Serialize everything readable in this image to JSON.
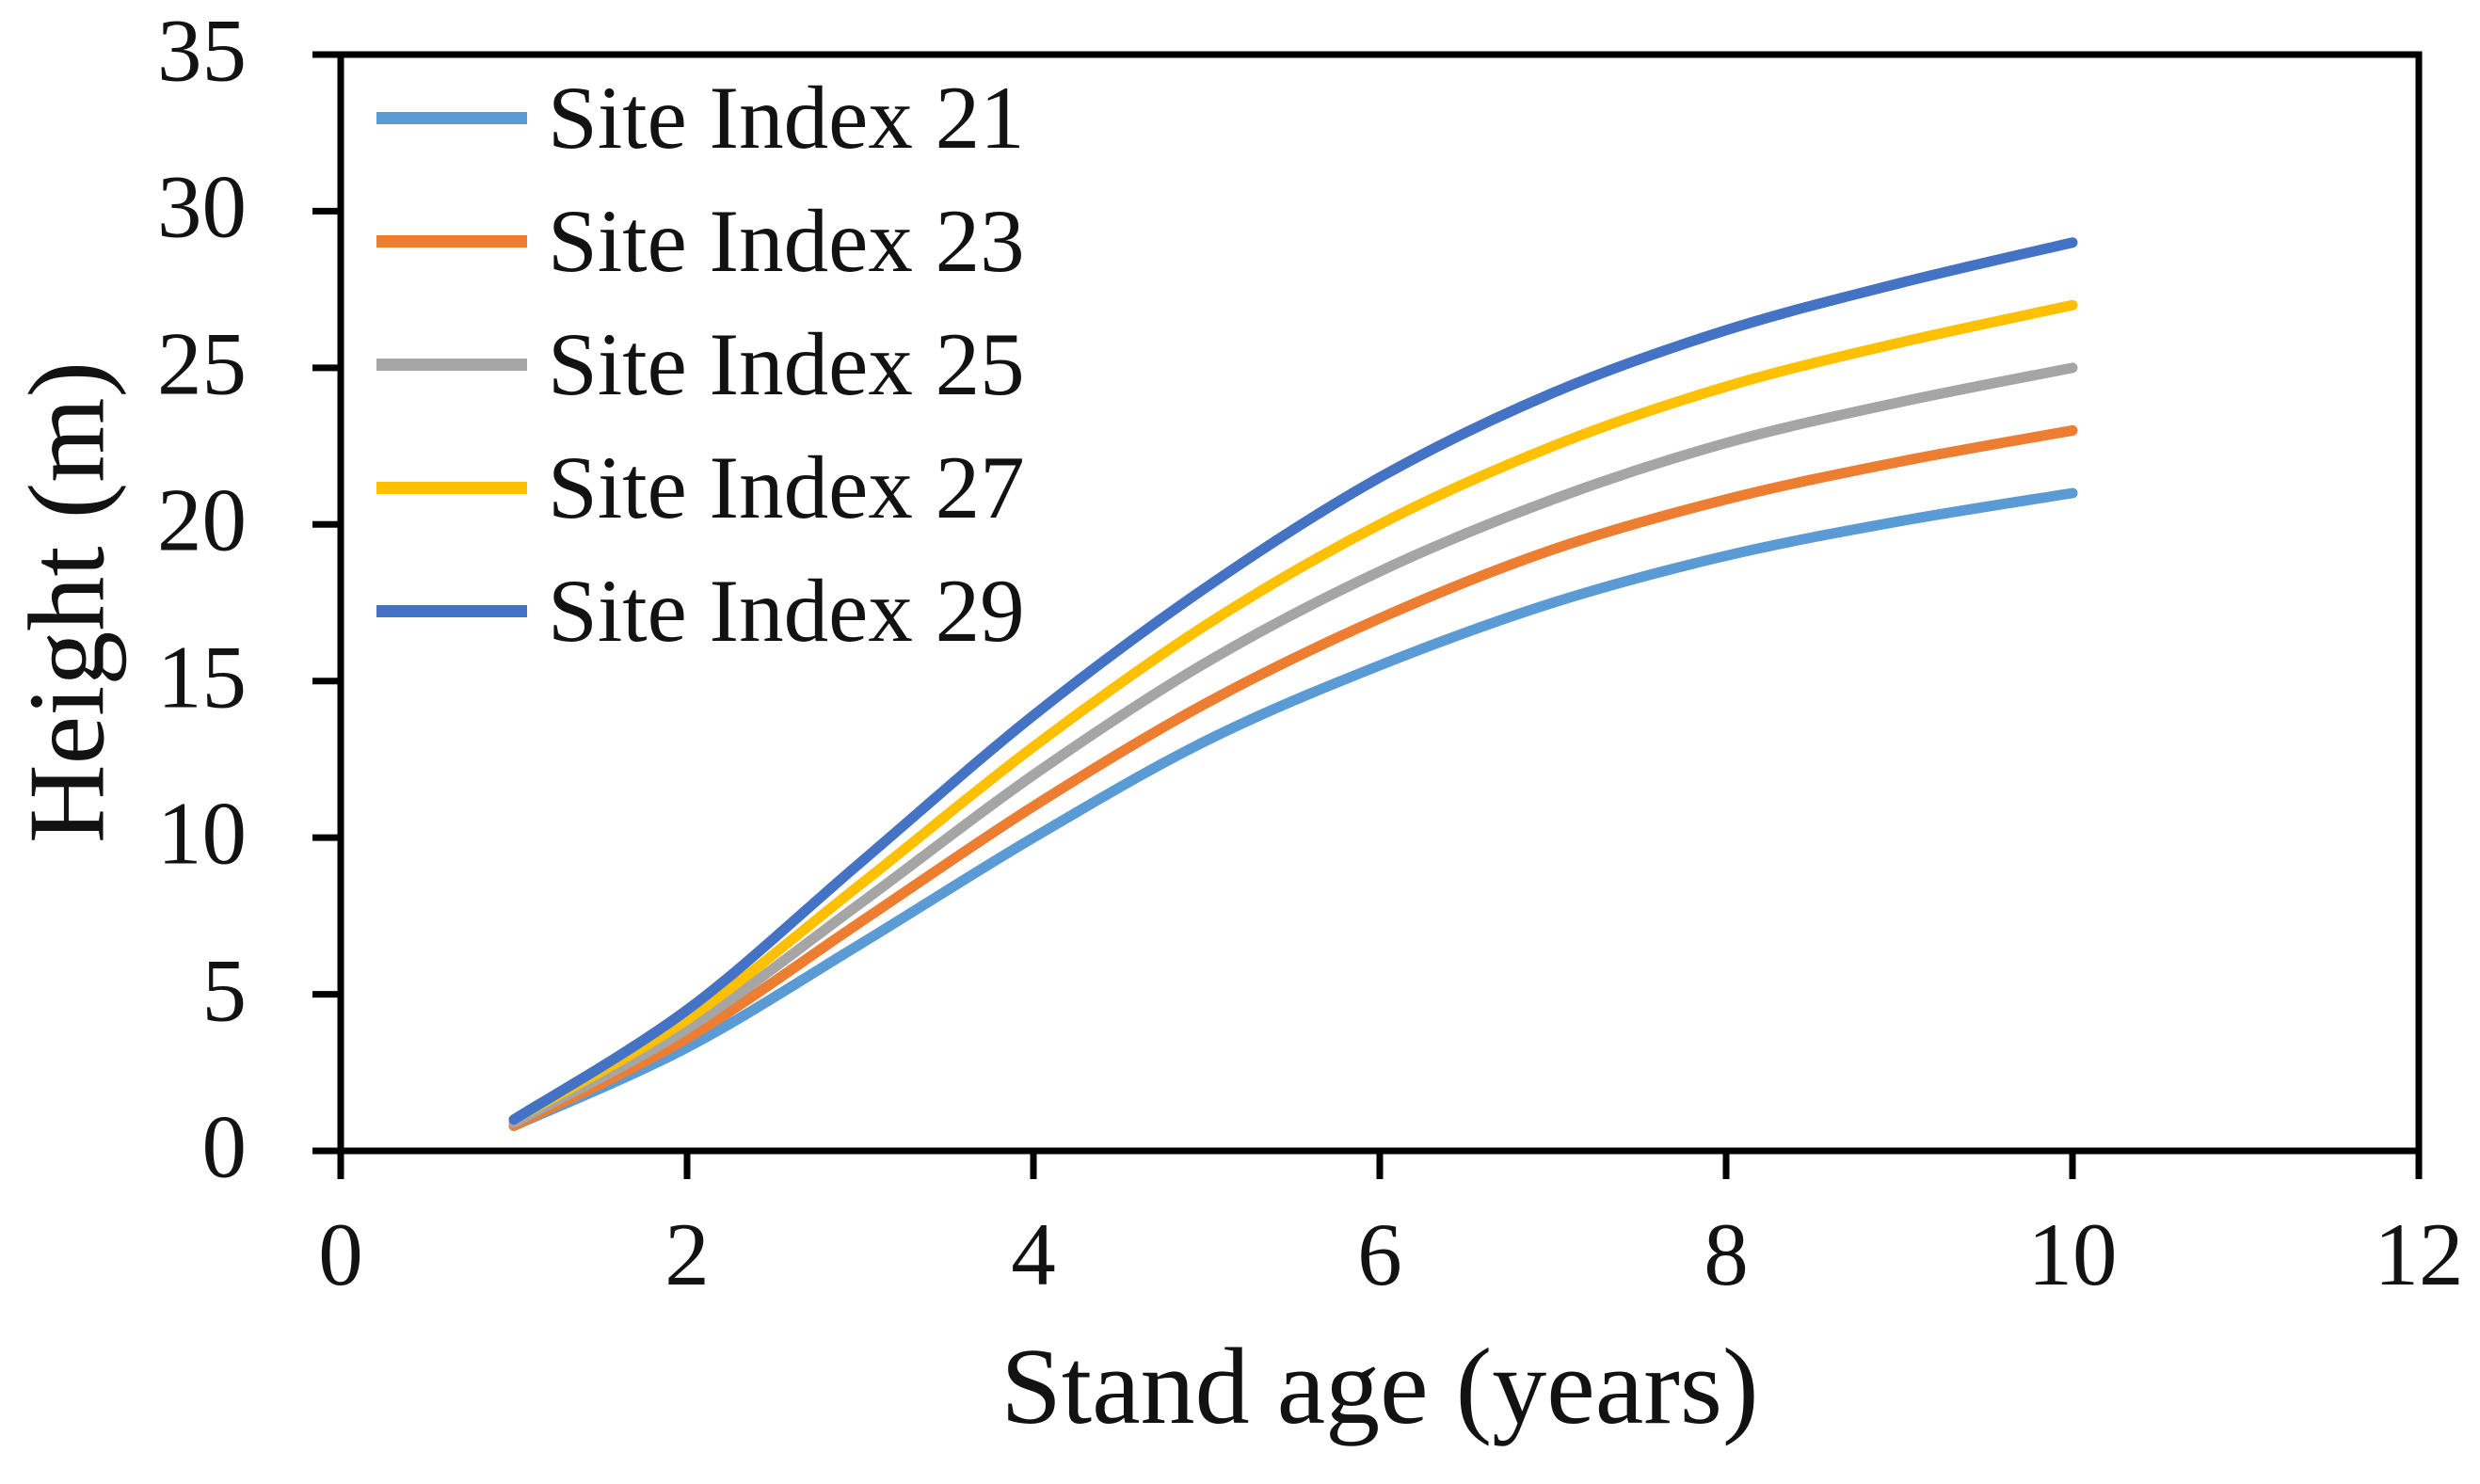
{
  "chart_data": {
    "type": "line",
    "title": "",
    "xlabel": "Stand age (years)",
    "ylabel": "Height (m)",
    "xlim": [
      0,
      12
    ],
    "ylim": [
      0,
      35
    ],
    "xticks": [
      0,
      2,
      4,
      6,
      8,
      10,
      12
    ],
    "yticks": [
      0,
      5,
      10,
      15,
      20,
      25,
      30,
      35
    ],
    "grid": false,
    "legend_position": "upper-left-inside",
    "axis_color": "#000000",
    "x": [
      1,
      2,
      3,
      4,
      5,
      6,
      7,
      8,
      9,
      10
    ],
    "series": [
      {
        "name": "Site Index 21",
        "color": "#5B9BD5",
        "values": [
          0.8,
          3.3,
          6.6,
          10.0,
          13.1,
          15.5,
          17.5,
          19.0,
          20.1,
          21.0
        ]
      },
      {
        "name": "Site Index 23",
        "color": "#ED7D31",
        "values": [
          0.8,
          3.6,
          7.3,
          11.0,
          14.3,
          17.0,
          19.2,
          20.8,
          22.0,
          23.0
        ]
      },
      {
        "name": "Site Index 25",
        "color": "#A5A5A5",
        "values": [
          0.9,
          3.9,
          7.9,
          12.0,
          15.6,
          18.5,
          20.8,
          22.6,
          23.9,
          25.0
        ]
      },
      {
        "name": "Site Index 27",
        "color": "#FFC000",
        "values": [
          1.0,
          4.2,
          8.5,
          12.9,
          16.8,
          20.0,
          22.5,
          24.4,
          25.8,
          27.0
        ]
      },
      {
        "name": "Site Index 29",
        "color": "#4472C4",
        "values": [
          1.0,
          4.5,
          9.2,
          13.9,
          18.0,
          21.5,
          24.2,
          26.2,
          27.7,
          29.0
        ]
      }
    ]
  }
}
